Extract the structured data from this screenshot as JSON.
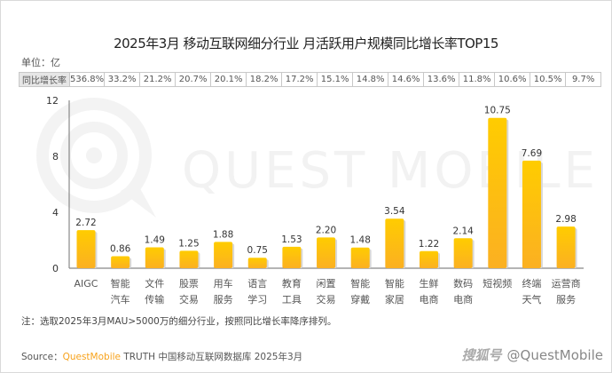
{
  "title": "2025年3月 移动互联网细分行业 月活跃用户规模同比增长率TOP15",
  "unit_label": "单位：亿",
  "growth_table": {
    "header": "同比增长率",
    "values": [
      "536.8%",
      "33.2%",
      "21.2%",
      "20.7%",
      "20.1%",
      "18.2%",
      "17.2%",
      "15.1%",
      "14.8%",
      "14.6%",
      "13.6%",
      "11.8%",
      "10.6%",
      "10.5%",
      "9.7%"
    ]
  },
  "watermark": "QUEST MOBILE",
  "chart_data": {
    "type": "bar",
    "title": "2025年3月 移动互联网细分行业 月活跃用户规模同比增长率TOP15",
    "xlabel": "",
    "ylabel": "单位：亿",
    "ylim": [
      0,
      12
    ],
    "yticks": [
      0,
      4,
      8,
      12
    ],
    "grid": false,
    "categories": [
      [
        "AIGC"
      ],
      [
        "智能",
        "汽车"
      ],
      [
        "文件",
        "传输"
      ],
      [
        "股票",
        "交易"
      ],
      [
        "用车",
        "服务"
      ],
      [
        "语言",
        "学习"
      ],
      [
        "教育",
        "工具"
      ],
      [
        "闲置",
        "交易"
      ],
      [
        "智能",
        "穿戴"
      ],
      [
        "智能",
        "家居"
      ],
      [
        "生鲜",
        "电商"
      ],
      [
        "数码",
        "电商"
      ],
      [
        "短视频"
      ],
      [
        "终端",
        "天气"
      ],
      [
        "运营商",
        "服务"
      ]
    ],
    "values": [
      2.72,
      0.86,
      1.49,
      1.25,
      1.88,
      0.75,
      1.53,
      2.2,
      1.48,
      3.54,
      1.22,
      2.14,
      10.75,
      7.69,
      2.98
    ],
    "value_labels": [
      "2.72",
      "0.86",
      "1.49",
      "1.25",
      "1.88",
      "0.75",
      "1.53",
      "2.20",
      "1.48",
      "3.54",
      "1.22",
      "2.14",
      "10.75",
      "7.69",
      "2.98"
    ],
    "colors": {
      "bar_top": "#ffcc00",
      "bar_bottom": "#fbb022",
      "axis": "#888888"
    }
  },
  "note": "注：选取2025年3月MAU>5000万的细分行业，按照同比增长率降序排列。",
  "source": {
    "prefix": "Source：",
    "brand": "QuestMobile",
    "rest": " TRUTH 中国移动互联网数据库 2025年3月"
  },
  "credit": {
    "tag": "搜狐号",
    "handle": "@QuestMobile"
  }
}
